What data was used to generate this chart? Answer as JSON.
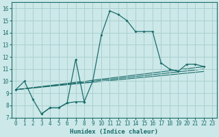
{
  "xlabel": "Humidex (Indice chaleur)",
  "xlim": [
    -0.5,
    23.5
  ],
  "ylim": [
    7,
    16.5
  ],
  "xticks": [
    0,
    1,
    2,
    3,
    4,
    5,
    6,
    7,
    8,
    9,
    10,
    11,
    12,
    13,
    14,
    15,
    16,
    17,
    18,
    19,
    20,
    21,
    22,
    23
  ],
  "yticks": [
    7,
    8,
    9,
    10,
    11,
    12,
    13,
    14,
    15,
    16
  ],
  "background_color": "#cce8e8",
  "grid_color": "#aad0d0",
  "line_color": "#1a6b6b",
  "series_main": {
    "x": [
      0,
      1,
      2,
      3,
      4,
      5,
      6,
      7,
      8,
      9,
      10,
      11,
      12,
      13,
      14,
      15,
      16,
      17,
      18,
      19,
      20,
      21,
      22
    ],
    "y": [
      9.3,
      10.0,
      8.5,
      7.3,
      7.8,
      7.8,
      8.2,
      8.3,
      8.3,
      10.0,
      13.8,
      15.8,
      15.5,
      15.0,
      14.1,
      14.1,
      14.1,
      11.5,
      11.0,
      10.8,
      11.4,
      11.4,
      11.2
    ]
  },
  "series_spike": {
    "x": [
      3,
      4,
      5,
      6,
      7,
      8
    ],
    "y": [
      7.3,
      7.8,
      7.8,
      8.2,
      11.8,
      8.3
    ]
  },
  "series_lines": [
    {
      "x": [
        0,
        22
      ],
      "y": [
        9.3,
        11.2
      ]
    },
    {
      "x": [
        0,
        22
      ],
      "y": [
        9.3,
        11.0
      ]
    },
    {
      "x": [
        0,
        22
      ],
      "y": [
        9.3,
        10.8
      ]
    }
  ]
}
